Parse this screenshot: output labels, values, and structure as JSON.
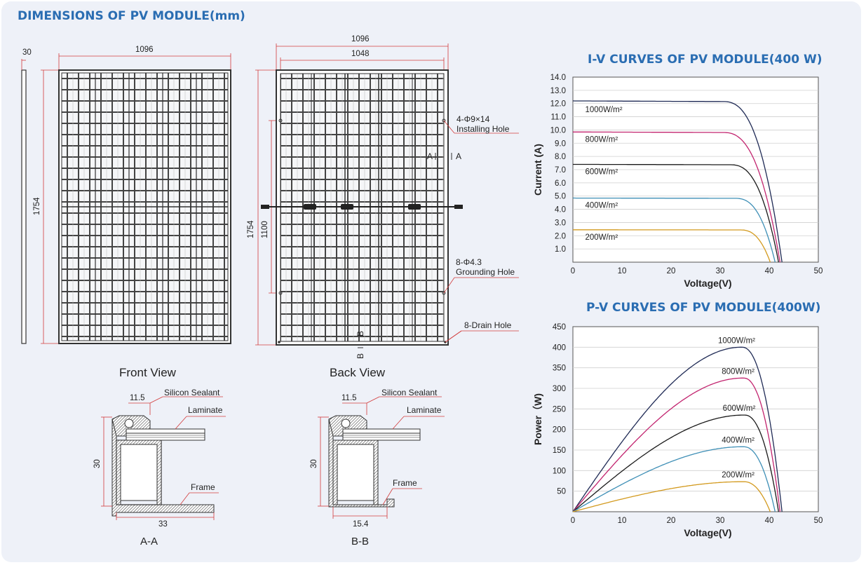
{
  "header": {
    "title": "DIMENSIONS OF PV MODULE(mm)"
  },
  "front_view": {
    "label": "Front View",
    "thickness": "30",
    "width": "1096",
    "height": "1754"
  },
  "back_view": {
    "label": "Back View",
    "width_outer": "1096",
    "width_inner": "1048",
    "height_outer": "1754",
    "height_inner": "1100",
    "installing_hole": [
      "4-Φ9×14",
      "Installing Hole"
    ],
    "grounding_hole": [
      "8-Φ4.3",
      "Grounding Hole"
    ],
    "drain_hole": "8-Drain Hole",
    "section_a": "A",
    "section_b": "B"
  },
  "section_aa": {
    "caption": "A-A",
    "top_dim": "11.5",
    "height_dim": "30",
    "bottom_dim": "33",
    "labels": {
      "sealant": "Silicon Sealant",
      "laminate": "Laminate",
      "frame": "Frame"
    }
  },
  "section_bb": {
    "caption": "B-B",
    "top_dim": "11.5",
    "height_dim": "30",
    "bottom_dim": "15.4",
    "labels": {
      "sealant": "Silicon Sealant",
      "laminate": "Laminate",
      "frame": "Frame"
    }
  },
  "chart_data": [
    {
      "type": "line",
      "title": "I-V CURVES OF PV MODULE(400 W)",
      "xlabel": "Voltage(V)",
      "ylabel": "Current (A)",
      "xlim": [
        0,
        50
      ],
      "ylim": [
        0,
        14
      ],
      "xticks": [
        "0",
        "10",
        "20",
        "30",
        "40",
        "50"
      ],
      "yticks": [
        "1.0",
        "2.0",
        "3.0",
        "4.0",
        "5.0",
        "6.0",
        "7.0",
        "8.0",
        "9.0",
        "10.0",
        "11.0",
        "12.0",
        "13.0",
        "14.0"
      ],
      "grid": true,
      "series": [
        {
          "name": "1000W/m²",
          "color": "#1f2a55",
          "isc": 12.2,
          "voc": 42.6,
          "knee": 30.5
        },
        {
          "name": "800W/m²",
          "color": "#c2246f",
          "isc": 9.85,
          "voc": 42.2,
          "knee": 30.5
        },
        {
          "name": "600W/m²",
          "color": "#1a1a1a",
          "isc": 7.4,
          "voc": 41.9,
          "knee": 32.0
        },
        {
          "name": "400W/m²",
          "color": "#3e8fb6",
          "isc": 4.85,
          "voc": 41.2,
          "knee": 33.0
        },
        {
          "name": "200W/m²",
          "color": "#d39a1e",
          "isc": 2.45,
          "voc": 40.2,
          "knee": 34.0
        }
      ]
    },
    {
      "type": "line",
      "title": "P-V CURVES OF PV MODULE(400W)",
      "xlabel": "Voltage(V)",
      "ylabel": "Power（W)",
      "xlim": [
        0,
        50
      ],
      "ylim": [
        0,
        450
      ],
      "xticks": [
        "0",
        "10",
        "20",
        "30",
        "40",
        "50"
      ],
      "yticks": [
        "50",
        "100",
        "150",
        "200",
        "250",
        "300",
        "350",
        "400",
        "450"
      ],
      "grid": true,
      "series": [
        {
          "name": "1000W/m²",
          "color": "#1f2a55",
          "pmax": 400,
          "vmp": 34.5,
          "voc": 42.6
        },
        {
          "name": "800W/m²",
          "color": "#c2246f",
          "pmax": 325,
          "vmp": 34.8,
          "voc": 42.2
        },
        {
          "name": "600W/m²",
          "color": "#1a1a1a",
          "pmax": 235,
          "vmp": 35.0,
          "voc": 41.9
        },
        {
          "name": "400W/m²",
          "color": "#3e8fb6",
          "pmax": 158,
          "vmp": 34.8,
          "voc": 41.2
        },
        {
          "name": "200W/m²",
          "color": "#d39a1e",
          "pmax": 73,
          "vmp": 34.8,
          "voc": 40.2
        }
      ]
    }
  ]
}
